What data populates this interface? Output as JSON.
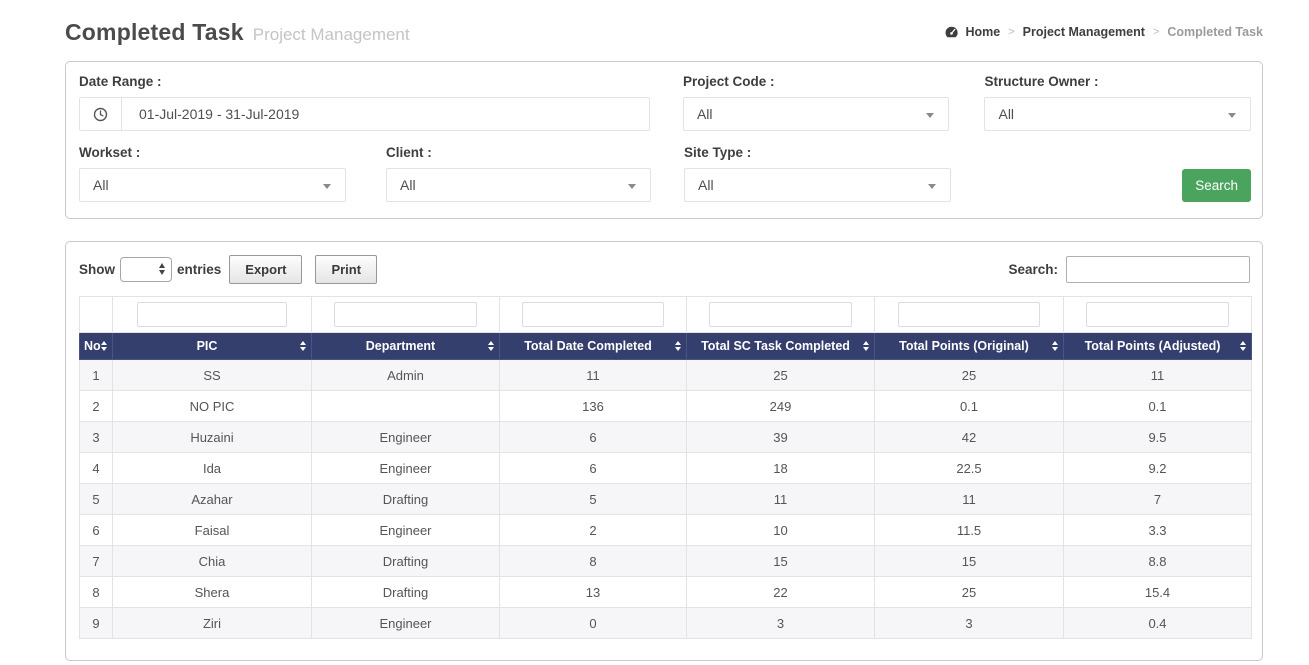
{
  "page": {
    "title": "Completed Task",
    "subtitle": "Project Management"
  },
  "breadcrumb": {
    "home_icon": "tachometer-icon",
    "items": [
      "Home",
      "Project Management",
      "Completed Task"
    ],
    "separator": ">"
  },
  "filters": {
    "date_range": {
      "label": "Date Range :",
      "value": "01-Jul-2019 - 31-Jul-2019",
      "icon": "clock-icon"
    },
    "project_code": {
      "label": "Project Code :",
      "value": "All"
    },
    "structure_owner": {
      "label": "Structure Owner :",
      "value": "All"
    },
    "workset": {
      "label": "Workset :",
      "value": "All"
    },
    "client": {
      "label": "Client :",
      "value": "All"
    },
    "site_type": {
      "label": "Site Type :",
      "value": "All"
    },
    "search_button": "Search"
  },
  "table_controls": {
    "show_label": "Show",
    "entries_label": "entries",
    "export_button": "Export",
    "print_button": "Print",
    "search_label": "Search:",
    "search_value": ""
  },
  "table": {
    "columns": [
      "No",
      "PIC",
      "Department",
      "Total Date Completed",
      "Total SC Task Completed",
      "Total Points (Original)",
      "Total Points (Adjusted)"
    ],
    "rows": [
      [
        "1",
        "SS",
        "Admin",
        "11",
        "25",
        "25",
        "11"
      ],
      [
        "2",
        "NO PIC",
        "",
        "136",
        "249",
        "0.1",
        "0.1"
      ],
      [
        "3",
        "Huzaini",
        "Engineer",
        "6",
        "39",
        "42",
        "9.5"
      ],
      [
        "4",
        "Ida",
        "Engineer",
        "6",
        "18",
        "22.5",
        "9.2"
      ],
      [
        "5",
        "Azahar",
        "Drafting",
        "5",
        "11",
        "11",
        "7"
      ],
      [
        "6",
        "Faisal",
        "Engineer",
        "2",
        "10",
        "11.5",
        "3.3"
      ],
      [
        "7",
        "Chia",
        "Drafting",
        "8",
        "15",
        "15",
        "8.8"
      ],
      [
        "8",
        "Shera",
        "Drafting",
        "13",
        "22",
        "25",
        "15.4"
      ],
      [
        "9",
        "Ziri",
        "Engineer",
        "0",
        "3",
        "3",
        "0.4"
      ]
    ]
  },
  "colors": {
    "table_header_bg": "#343f6e",
    "search_button_bg": "#4aa45e",
    "stripe_row_bg": "#f6f6f8"
  }
}
